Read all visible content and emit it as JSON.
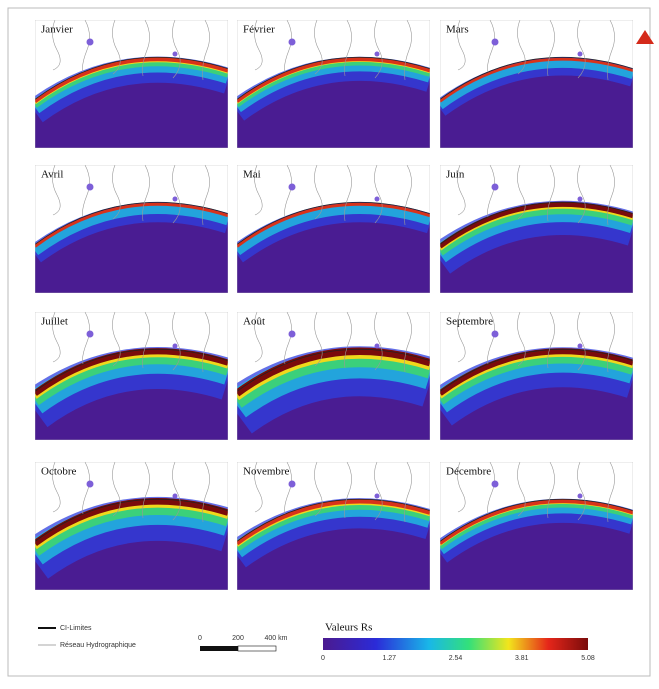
{
  "panels": [
    {
      "label": "Janvier"
    },
    {
      "label": "Février"
    },
    {
      "label": "Mars"
    },
    {
      "label": "Avril"
    },
    {
      "label": "Mai"
    },
    {
      "label": "Juin"
    },
    {
      "label": "Juillet"
    },
    {
      "label": "Août"
    },
    {
      "label": "Septembre"
    },
    {
      "label": "Octobre"
    },
    {
      "label": "Novembre"
    },
    {
      "label": "Décembre"
    }
  ],
  "legend": {
    "items": [
      "CI-Limites",
      "Réseau Hydrographique"
    ]
  },
  "scale_bar": {
    "labels": [
      "0",
      "200",
      "400 km"
    ]
  },
  "colorbar": {
    "title": "Valeurs Rs",
    "ticks": [
      "0",
      "1.27",
      "2.54",
      "3.81",
      "5.08"
    ]
  }
}
